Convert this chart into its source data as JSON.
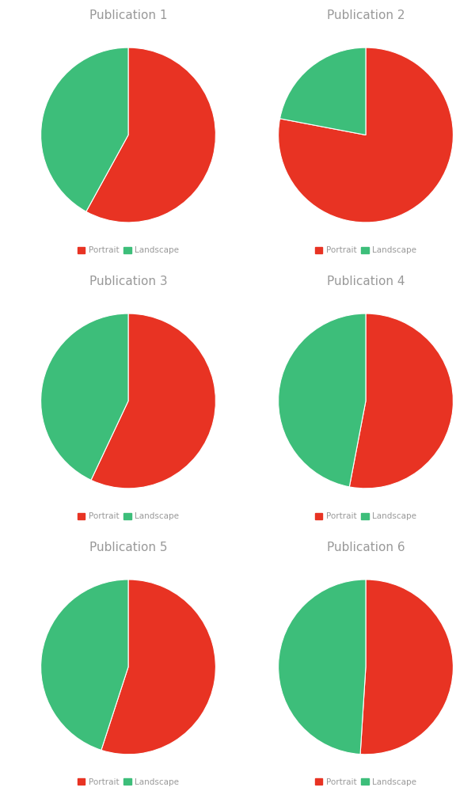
{
  "publications": [
    {
      "title": "Publication 1",
      "portrait": 58,
      "landscape": 42
    },
    {
      "title": "Publication 2",
      "portrait": 78,
      "landscape": 22
    },
    {
      "title": "Publication 3",
      "portrait": 57,
      "landscape": 43
    },
    {
      "title": "Publication 4",
      "portrait": 53,
      "landscape": 47
    },
    {
      "title": "Publication 5",
      "portrait": 55,
      "landscape": 45
    },
    {
      "title": "Publication 6",
      "portrait": 51,
      "landscape": 49
    }
  ],
  "colors": {
    "portrait": "#E83323",
    "landscape": "#3DBE7A"
  },
  "title_color": "#999999",
  "title_fontsize": 11,
  "legend_fontsize": 7.5,
  "background_color": "#FFFFFF",
  "startangle": 90
}
